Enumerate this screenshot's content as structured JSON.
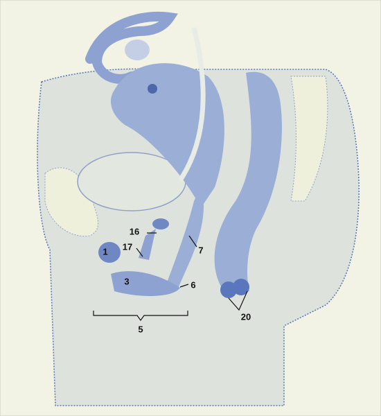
{
  "labels": [
    {
      "text": "1"
    },
    {
      "text": "3"
    },
    {
      "text": "5"
    },
    {
      "text": "6"
    },
    {
      "text": "7"
    },
    {
      "text": "16"
    },
    {
      "text": "17"
    },
    {
      "text": "20"
    }
  ]
}
